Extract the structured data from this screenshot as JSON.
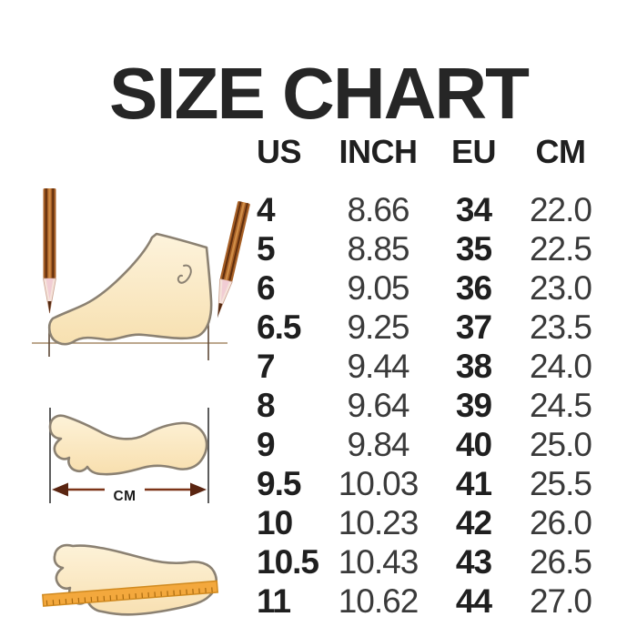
{
  "chart_data": {
    "type": "table",
    "title": "SIZE CHART",
    "columns": [
      "US",
      "INCH",
      "EU",
      "CM"
    ],
    "rows": [
      [
        "4",
        "8.66",
        "34",
        "22.0"
      ],
      [
        "5",
        "8.85",
        "35",
        "22.5"
      ],
      [
        "6",
        "9.05",
        "36",
        "23.0"
      ],
      [
        "6.5",
        "9.25",
        "37",
        "23.5"
      ],
      [
        "7",
        "9.44",
        "38",
        "24.0"
      ],
      [
        "8",
        "9.64",
        "39",
        "24.5"
      ],
      [
        "9",
        "9.84",
        "40",
        "25.0"
      ],
      [
        "9.5",
        "10.03",
        "41",
        "25.5"
      ],
      [
        "10",
        "10.23",
        "42",
        "26.0"
      ],
      [
        "10.5",
        "10.43",
        "43",
        "26.5"
      ],
      [
        "11",
        "10.62",
        "44",
        "27.0"
      ]
    ]
  },
  "illustrations": {
    "cm_label": "CM"
  },
  "colors": {
    "background": "#ffffff",
    "text_primary": "#1f1f1f",
    "text_secondary": "#3a3a3a",
    "foot_fill": "#fbe9c6",
    "foot_outline": "#8b8172",
    "pencil_body": "#a86026",
    "ruler_fill": "#f3a83d",
    "measure_arrow": "#5a2511"
  }
}
